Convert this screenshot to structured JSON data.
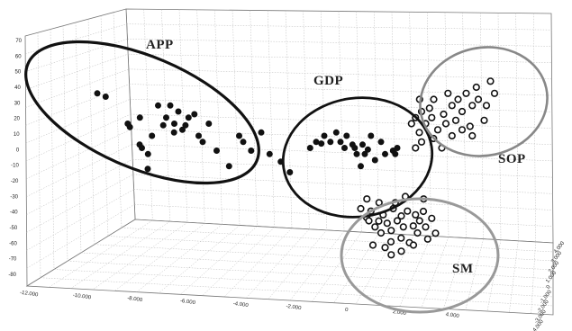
{
  "chart_data": {
    "type": "scatter",
    "projection": "3d",
    "grid": true,
    "y_axis": {
      "range": [
        -80,
        70
      ],
      "ticks": [
        "70",
        "60",
        "50",
        "40",
        "30",
        "20",
        "10",
        "0",
        "-10",
        "-20",
        "-30",
        "-40",
        "-50",
        "-60",
        "-70",
        "-80"
      ]
    },
    "x_axis": {
      "ticks": [
        "-12.000",
        "-10.000",
        "-8.000",
        "-6.000",
        "-4.000",
        "-2.000",
        "0",
        "2.000",
        "4.000"
      ]
    },
    "z_axis": {
      "ticks": [
        "-4.000",
        "-3.000",
        "-2.000",
        "-1.000",
        "0",
        "1.000",
        "2.000",
        "3.000",
        "4.000"
      ]
    },
    "series": [
      {
        "name": "APP",
        "marker": "filled",
        "outline": "#111111",
        "points": [
          [
            -12.0,
            5.5,
            0.0
          ],
          [
            -11.5,
            5.0,
            -0.5
          ],
          [
            -10.5,
            3.0,
            0.0
          ],
          [
            -10.3,
            2.5,
            -0.5
          ],
          [
            -10.0,
            1.5,
            0.5
          ],
          [
            -9.9,
            3.5,
            0.0
          ],
          [
            -9.8,
            1.0,
            0.0
          ],
          [
            -9.6,
            -0.5,
            0.5
          ],
          [
            -9.5,
            0.5,
            0.0
          ],
          [
            -9.3,
            2.0,
            0.0
          ],
          [
            -9.0,
            4.5,
            0.0
          ],
          [
            -8.8,
            3.0,
            0.3
          ],
          [
            -8.6,
            3.5,
            0.0
          ],
          [
            -8.4,
            4.5,
            0.0
          ],
          [
            -8.3,
            2.5,
            0.5
          ],
          [
            -8.2,
            3.0,
            0.0
          ],
          [
            -8.0,
            4.0,
            0.0
          ],
          [
            -7.8,
            2.5,
            0.0
          ],
          [
            -7.7,
            3.0,
            0.3
          ],
          [
            -7.5,
            3.5,
            0.0
          ],
          [
            -7.3,
            4.0,
            0.5
          ],
          [
            -7.0,
            2.0,
            0.0
          ],
          [
            -6.8,
            1.5,
            0.0
          ],
          [
            -6.5,
            3.0,
            0.0
          ],
          [
            -6.2,
            1.0,
            0.5
          ],
          [
            -5.5,
            -0.5,
            0.0
          ],
          [
            -5.0,
            2.0,
            0.0
          ],
          [
            -4.8,
            1.5,
            0.0
          ],
          [
            -4.5,
            1.0,
            0.5
          ],
          [
            -4.0,
            2.5,
            0.5
          ],
          [
            -3.5,
            0.5,
            0.0
          ],
          [
            -3.0,
            0.0,
            0.3
          ],
          [
            -2.5,
            -1.0,
            0.0
          ]
        ]
      },
      {
        "name": "GDP",
        "marker": "filled",
        "outline": "#111111",
        "points": [
          [
            -1.5,
            1.0,
            0.0
          ],
          [
            -1.2,
            1.5,
            0.0
          ],
          [
            -1.0,
            1.5,
            0.3
          ],
          [
            -0.8,
            2.0,
            0.0
          ],
          [
            -0.5,
            1.5,
            0.0
          ],
          [
            -0.3,
            2.5,
            0.5
          ],
          [
            0.0,
            1.5,
            0.0
          ],
          [
            0.2,
            1.0,
            0.0
          ],
          [
            0.3,
            2.0,
            0.0
          ],
          [
            0.5,
            1.5,
            0.5
          ],
          [
            0.7,
            1.0,
            0.0
          ],
          [
            0.8,
            0.5,
            0.0
          ],
          [
            1.0,
            1.5,
            0.5
          ],
          [
            1.2,
            0.5,
            0.0
          ],
          [
            1.3,
            1.0,
            0.3
          ],
          [
            1.5,
            2.0,
            0.0
          ],
          [
            1.7,
            0.0,
            0.0
          ],
          [
            2.0,
            1.5,
            0.0
          ],
          [
            2.2,
            0.5,
            0.0
          ],
          [
            2.5,
            1.0,
            0.5
          ],
          [
            2.7,
            0.5,
            0.0
          ],
          [
            2.8,
            1.0,
            0.0
          ],
          [
            1.0,
            -0.5,
            0.0
          ]
        ]
      },
      {
        "name": "SOP",
        "marker": "open",
        "outline": "#111111",
        "points": [
          [
            3.5,
            3.0,
            0.0
          ],
          [
            3.7,
            3.5,
            0.0
          ],
          [
            3.8,
            2.5,
            0.5
          ],
          [
            4.0,
            4.0,
            0.0
          ],
          [
            4.2,
            3.0,
            0.0
          ],
          [
            4.3,
            4.5,
            0.5
          ],
          [
            4.5,
            3.5,
            0.0
          ],
          [
            4.6,
            5.0,
            0.0
          ],
          [
            4.8,
            2.5,
            0.0
          ],
          [
            5.0,
            4.0,
            0.5
          ],
          [
            5.2,
            3.0,
            0.0
          ],
          [
            5.3,
            5.5,
            0.0
          ],
          [
            5.5,
            4.5,
            0.0
          ],
          [
            5.6,
            3.5,
            0.5
          ],
          [
            5.8,
            5.0,
            0.0
          ],
          [
            6.0,
            4.0,
            0.0
          ],
          [
            6.2,
            5.5,
            0.0
          ],
          [
            6.3,
            3.0,
            0.5
          ],
          [
            6.5,
            4.5,
            0.0
          ],
          [
            6.7,
            6.0,
            0.0
          ],
          [
            6.8,
            5.0,
            0.0
          ],
          [
            7.0,
            3.5,
            0.5
          ],
          [
            7.2,
            4.5,
            0.0
          ],
          [
            7.4,
            6.5,
            0.0
          ],
          [
            4.0,
            1.5,
            0.0
          ],
          [
            5.0,
            1.0,
            0.0
          ],
          [
            4.5,
            2.0,
            0.5
          ],
          [
            5.5,
            2.0,
            0.0
          ],
          [
            6.0,
            2.5,
            0.0
          ],
          [
            6.5,
            2.0,
            0.0
          ],
          [
            3.7,
            1.0,
            0.0
          ],
          [
            7.6,
            5.5,
            0.0
          ],
          [
            3.9,
            5.0,
            0.0
          ]
        ]
      },
      {
        "name": "SM",
        "marker": "open",
        "outline": "#111111",
        "points": [
          [
            1.0,
            -4.0,
            0.0
          ],
          [
            1.2,
            -4.5,
            0.5
          ],
          [
            1.4,
            -5.0,
            0.0
          ],
          [
            1.5,
            -4.2,
            0.0
          ],
          [
            1.7,
            -5.5,
            0.0
          ],
          [
            1.8,
            -4.8,
            0.5
          ],
          [
            2.0,
            -6.0,
            0.0
          ],
          [
            2.1,
            -4.5,
            0.0
          ],
          [
            2.3,
            -5.2,
            0.0
          ],
          [
            2.4,
            -6.5,
            0.5
          ],
          [
            2.5,
            -5.8,
            0.0
          ],
          [
            2.6,
            -4.0,
            0.0
          ],
          [
            2.8,
            -5.0,
            0.0
          ],
          [
            2.9,
            -6.2,
            0.5
          ],
          [
            3.0,
            -4.6,
            0.0
          ],
          [
            3.1,
            -5.5,
            0.0
          ],
          [
            3.3,
            -4.2,
            0.0
          ],
          [
            3.4,
            -6.8,
            0.0
          ],
          [
            3.5,
            -5.2,
            0.5
          ],
          [
            3.7,
            -4.5,
            0.0
          ],
          [
            3.8,
            -6.0,
            0.0
          ],
          [
            3.9,
            -5.0,
            0.0
          ],
          [
            4.0,
            -4.0,
            0.5
          ],
          [
            4.2,
            -5.5,
            0.0
          ],
          [
            4.3,
            -6.5,
            0.0
          ],
          [
            4.5,
            -4.8,
            0.0
          ],
          [
            4.6,
            -5.8,
            0.5
          ],
          [
            2.2,
            -7.2,
            0.0
          ],
          [
            3.0,
            -7.5,
            0.0
          ],
          [
            3.6,
            -7.0,
            0.0
          ],
          [
            1.6,
            -7.0,
            0.0
          ],
          [
            2.7,
            -3.5,
            0.0
          ],
          [
            1.3,
            -3.2,
            0.0
          ],
          [
            4.1,
            -3.2,
            0.0
          ],
          [
            1.9,
            -3.5,
            0.0
          ],
          [
            3.2,
            -3.0,
            0.0
          ],
          [
            2.5,
            -7.8,
            0.0
          ]
        ]
      }
    ],
    "annotations": [
      {
        "label": "APP",
        "ring": "#111111"
      },
      {
        "label": "GDP",
        "ring": "#111111"
      },
      {
        "label": "SOP",
        "ring": "#888888"
      },
      {
        "label": "SM",
        "ring": "#999999"
      }
    ]
  }
}
